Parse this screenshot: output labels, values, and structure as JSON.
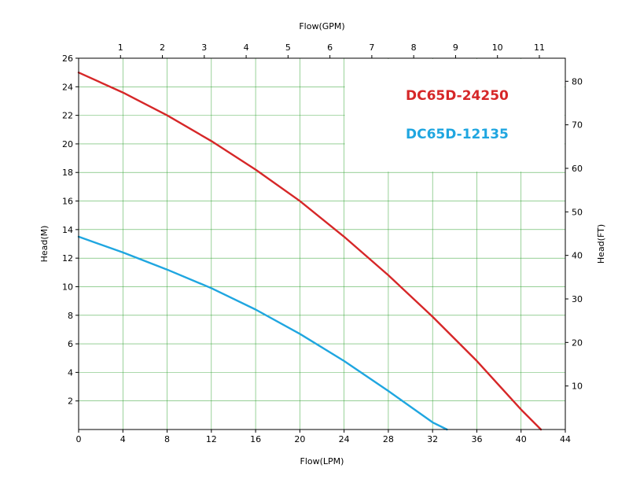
{
  "chart_data": {
    "type": "line",
    "title": "",
    "xlabel": "Flow(LPM)",
    "x2label": "Flow(GPM)",
    "ylabel": "Head(M)",
    "y2label": "Head(FT)",
    "xlim": [
      0,
      44
    ],
    "ylim": [
      0,
      26
    ],
    "x2lim": [
      0,
      11.62
    ],
    "y2lim": [
      0,
      85.3
    ],
    "x_ticks": [
      0,
      4,
      8,
      12,
      16,
      20,
      24,
      28,
      32,
      36,
      40,
      44
    ],
    "y_ticks": [
      2,
      4,
      6,
      8,
      10,
      12,
      14,
      16,
      18,
      20,
      22,
      24,
      26
    ],
    "x2_ticks": [
      1,
      2,
      3,
      4,
      5,
      6,
      7,
      8,
      9,
      10,
      11
    ],
    "y2_ticks": [
      10,
      20,
      30,
      40,
      50,
      60,
      70,
      80
    ],
    "grid": true,
    "grid_color": "#2ca02c",
    "series": [
      {
        "name": "DC65D-24250",
        "color": "#d62728",
        "x": [
          0,
          4,
          8,
          12,
          16,
          20,
          24,
          28,
          32,
          36,
          40,
          41.8
        ],
        "y": [
          25.0,
          23.6,
          22.0,
          20.2,
          18.2,
          16.0,
          13.5,
          10.8,
          7.9,
          4.8,
          1.4,
          0
        ]
      },
      {
        "name": "DC65D-12135",
        "color": "#1fa6e0",
        "x": [
          0,
          4,
          8,
          12,
          16,
          20,
          24,
          28,
          32,
          33.3
        ],
        "y": [
          13.5,
          12.4,
          11.2,
          9.9,
          8.4,
          6.7,
          4.8,
          2.7,
          0.5,
          0
        ]
      }
    ],
    "legend": "top-right"
  }
}
